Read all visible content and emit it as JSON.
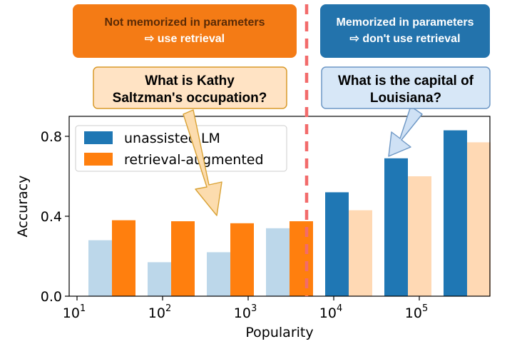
{
  "banners": {
    "left": {
      "line1": "Not memorized in parameters",
      "line2": "⇨ use retrieval"
    },
    "right": {
      "line1": "Memorized in parameters",
      "line2": "⇨ don't use retrieval"
    }
  },
  "questions": {
    "left": {
      "line1": "What is Kathy",
      "line2": "Saltzman's occupation?"
    },
    "right": {
      "line1": "What is the capital of",
      "line2": "Louisiana?"
    }
  },
  "colors": {
    "unassisted": "#1f77b4",
    "unassisted_faded": "#bcd7ea",
    "retrieval": "#ff7f0e",
    "retrieval_faded": "#ffd9b4",
    "left_banner": "#f47b15",
    "right_banner": "#2373ac",
    "left_question_fill": "#ffe3c4",
    "left_question_border": "#d99a2a",
    "right_question_fill": "#d7e7f7",
    "right_question_border": "#6d97c5",
    "divider": "#f26b6b"
  },
  "chart_data": {
    "type": "bar",
    "xlabel": "Popularity",
    "ylabel": "Accuracy",
    "ylim": [
      0.0,
      0.9
    ],
    "yticks": [
      "0.0",
      "0.4",
      "0.8"
    ],
    "xticks": [
      {
        "base": "10",
        "exp": "1"
      },
      {
        "base": "10",
        "exp": "2"
      },
      {
        "base": "10",
        "exp": "3"
      },
      {
        "base": "10",
        "exp": "4"
      },
      {
        "base": "10",
        "exp": "5"
      }
    ],
    "legend": {
      "placement": "top-left",
      "entries": [
        "unassisted LM",
        "retrieval-augmented"
      ]
    },
    "series": [
      {
        "name": "unassisted LM",
        "values": [
          0.28,
          0.17,
          0.22,
          0.34,
          0.52,
          0.69,
          0.83
        ]
      },
      {
        "name": "retrieval-augmented",
        "values": [
          0.38,
          0.375,
          0.365,
          0.375,
          0.43,
          0.6,
          0.77
        ]
      }
    ],
    "faded_unassisted": [
      true,
      true,
      true,
      true,
      false,
      false,
      false
    ],
    "faded_retrieval": [
      false,
      false,
      false,
      false,
      true,
      true,
      true
    ]
  }
}
